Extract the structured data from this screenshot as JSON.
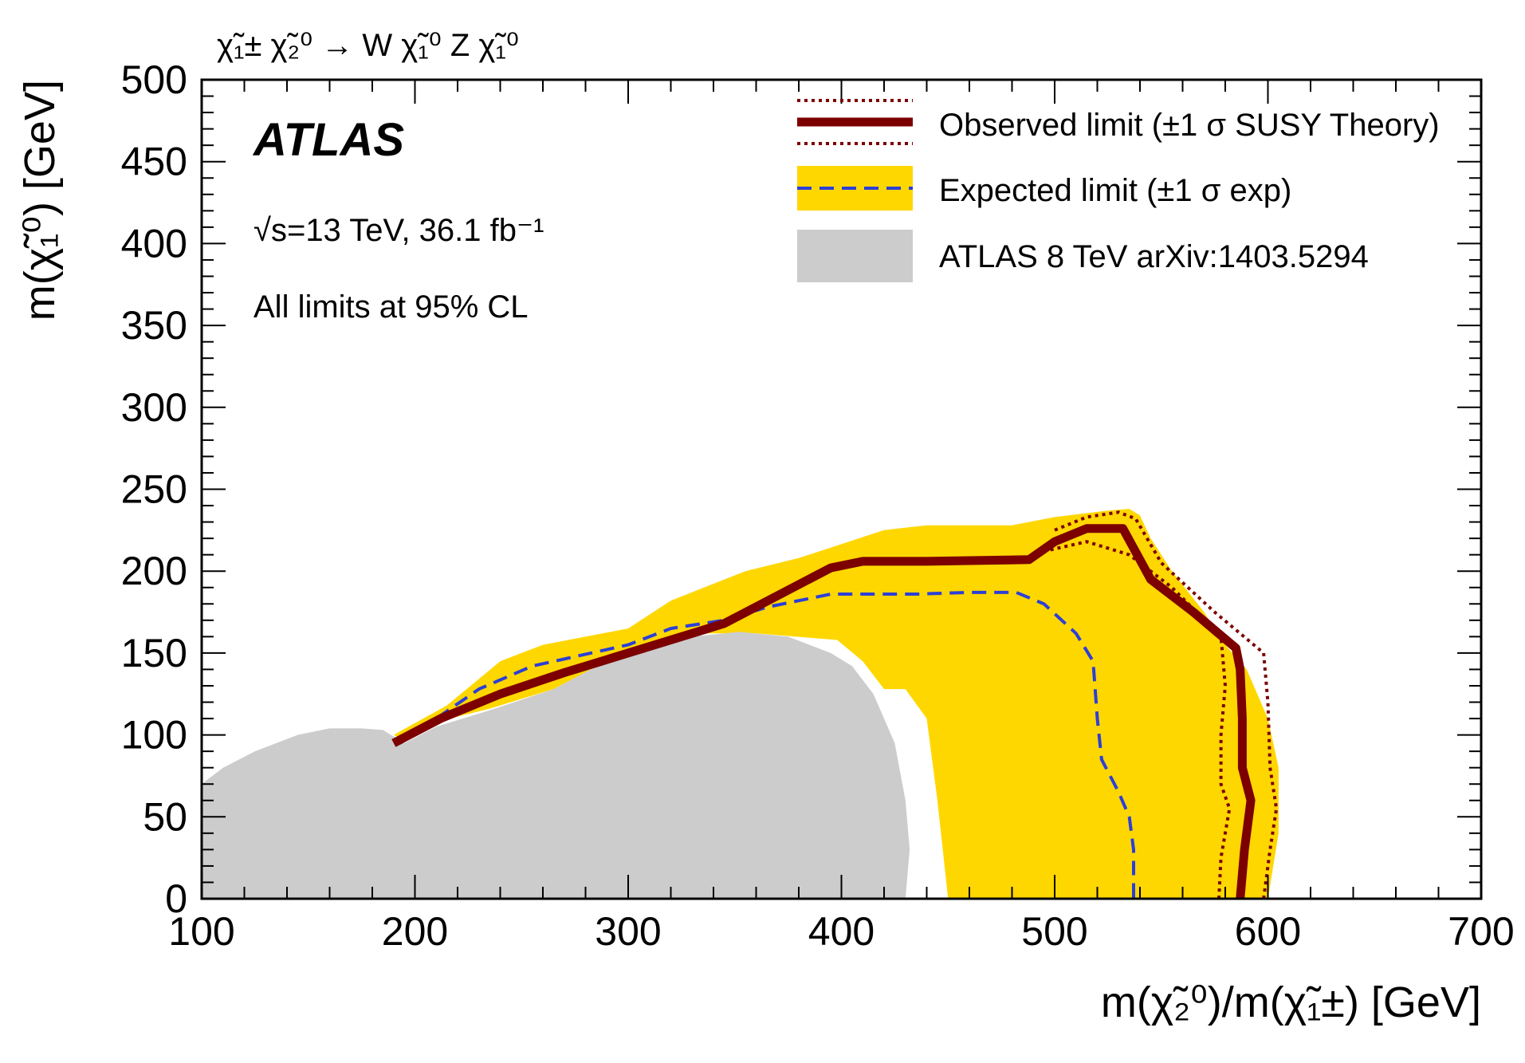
{
  "chart_data": {
    "type": "area",
    "process_label": "χ̃₁± χ̃₂⁰ → W χ̃₁⁰ Z χ̃₁⁰",
    "xlabel": "m(χ̃₂⁰)/m(χ̃₁±) [GeV]",
    "ylabel": "m(χ̃₁⁰) [GeV]",
    "xlim": [
      100,
      700
    ],
    "ylim": [
      0,
      500
    ],
    "x_ticks": [
      "100",
      "200",
      "300",
      "400",
      "500",
      "600",
      "700"
    ],
    "y_ticks": [
      "0",
      "50",
      "100",
      "150",
      "200",
      "250",
      "300",
      "350",
      "400",
      "450",
      "500"
    ],
    "grid": false,
    "legend_position": "top-right",
    "annotations": {
      "experiment": "ATLAS",
      "energy": "√s=13 TeV, 36.1 fb⁻¹",
      "cl": "All limits at 95% CL"
    },
    "legend": [
      {
        "label": "Observed limit  (±1 σ SUSY Theory)",
        "color": "#7d0000",
        "style": "solid+dotted"
      },
      {
        "label": "Expected limit (±1 σ exp)",
        "color": "#2b3fd6",
        "band_color": "#ffd700",
        "style": "dashed+band"
      },
      {
        "label": "ATLAS 8 TeV arXiv:1403.5294",
        "color": "#cccccc",
        "style": "filled"
      }
    ],
    "series": [
      {
        "name": "ATLAS 8 TeV arXiv:1403.5294",
        "kind": "region",
        "color": "#cccccc",
        "points": [
          [
            100,
            0
          ],
          [
            100,
            70
          ],
          [
            110,
            80
          ],
          [
            125,
            90
          ],
          [
            145,
            100
          ],
          [
            160,
            104
          ],
          [
            175,
            104
          ],
          [
            185,
            103
          ],
          [
            195,
            95
          ],
          [
            210,
            105
          ],
          [
            235,
            115
          ],
          [
            265,
            128
          ],
          [
            300,
            152
          ],
          [
            330,
            160
          ],
          [
            352,
            163
          ],
          [
            375,
            160
          ],
          [
            395,
            150
          ],
          [
            405,
            142
          ],
          [
            415,
            125
          ],
          [
            425,
            95
          ],
          [
            430,
            60
          ],
          [
            432,
            30
          ],
          [
            430,
            0
          ]
        ]
      },
      {
        "name": "Expected limit (±1 σ exp)",
        "kind": "band",
        "color": "#ffd700",
        "points": [
          [
            190,
            100
          ],
          [
            215,
            118
          ],
          [
            240,
            145
          ],
          [
            260,
            155
          ],
          [
            300,
            165
          ],
          [
            320,
            182
          ],
          [
            355,
            200
          ],
          [
            380,
            208
          ],
          [
            420,
            225
          ],
          [
            440,
            228
          ],
          [
            480,
            228
          ],
          [
            500,
            233
          ],
          [
            525,
            237
          ],
          [
            535,
            238
          ],
          [
            540,
            234
          ],
          [
            545,
            220
          ],
          [
            555,
            200
          ],
          [
            570,
            175
          ],
          [
            580,
            155
          ],
          [
            590,
            140
          ],
          [
            600,
            110
          ],
          [
            605,
            80
          ],
          [
            605,
            40
          ],
          [
            600,
            0
          ],
          [
            450,
            0
          ],
          [
            445,
            60
          ],
          [
            440,
            110
          ],
          [
            430,
            128
          ],
          [
            420,
            128
          ],
          [
            410,
            145
          ],
          [
            398,
            158
          ],
          [
            360,
            162
          ],
          [
            330,
            162
          ],
          [
            300,
            152
          ],
          [
            265,
            128
          ],
          [
            235,
            116
          ],
          [
            210,
            108
          ],
          [
            195,
            97
          ]
        ]
      },
      {
        "name": "Expected limit (±1 σ exp)",
        "kind": "line",
        "color": "#2b3fd6",
        "points": [
          [
            193,
            95
          ],
          [
            210,
            110
          ],
          [
            230,
            128
          ],
          [
            255,
            142
          ],
          [
            300,
            155
          ],
          [
            320,
            165
          ],
          [
            345,
            170
          ],
          [
            365,
            178
          ],
          [
            395,
            186
          ],
          [
            435,
            186
          ],
          [
            460,
            187
          ],
          [
            482,
            187
          ],
          [
            495,
            180
          ],
          [
            510,
            162
          ],
          [
            518,
            145
          ],
          [
            520,
            110
          ],
          [
            522,
            85
          ],
          [
            530,
            65
          ],
          [
            535,
            50
          ],
          [
            537,
            30
          ],
          [
            537,
            0
          ]
        ]
      },
      {
        "name": "Observed limit  (±1 σ SUSY Theory)",
        "kind": "line",
        "color": "#7d0000",
        "points": [
          [
            190,
            95
          ],
          [
            212,
            110
          ],
          [
            240,
            125
          ],
          [
            270,
            138
          ],
          [
            300,
            150
          ],
          [
            325,
            160
          ],
          [
            345,
            168
          ],
          [
            370,
            185
          ],
          [
            395,
            202
          ],
          [
            410,
            206
          ],
          [
            440,
            206
          ],
          [
            488,
            207
          ],
          [
            500,
            218
          ],
          [
            515,
            226
          ],
          [
            532,
            226
          ],
          [
            545,
            195
          ],
          [
            565,
            175
          ],
          [
            585,
            153
          ],
          [
            587,
            140
          ],
          [
            588,
            110
          ],
          [
            588,
            80
          ],
          [
            592,
            60
          ],
          [
            589,
            30
          ],
          [
            587,
            0
          ]
        ]
      },
      {
        "name": "Observed limit  (±1 σ SUSY Theory)",
        "kind": "line_dotted_upper",
        "color": "#7d0000",
        "points": [
          [
            500,
            225
          ],
          [
            515,
            233
          ],
          [
            530,
            236
          ],
          [
            538,
            232
          ],
          [
            550,
            205
          ],
          [
            575,
            175
          ],
          [
            598,
            150
          ],
          [
            600,
            120
          ],
          [
            601,
            80
          ],
          [
            604,
            55
          ],
          [
            601,
            30
          ],
          [
            598,
            0
          ]
        ]
      },
      {
        "name": "Observed limit  (±1 σ SUSY Theory)",
        "kind": "line_dotted_lower",
        "color": "#7d0000",
        "points": [
          [
            498,
            213
          ],
          [
            515,
            218
          ],
          [
            535,
            210
          ],
          [
            555,
            190
          ],
          [
            578,
            160
          ],
          [
            580,
            130
          ],
          [
            578,
            100
          ],
          [
            578,
            70
          ],
          [
            582,
            55
          ],
          [
            578,
            25
          ],
          [
            577,
            0
          ]
        ]
      }
    ]
  }
}
